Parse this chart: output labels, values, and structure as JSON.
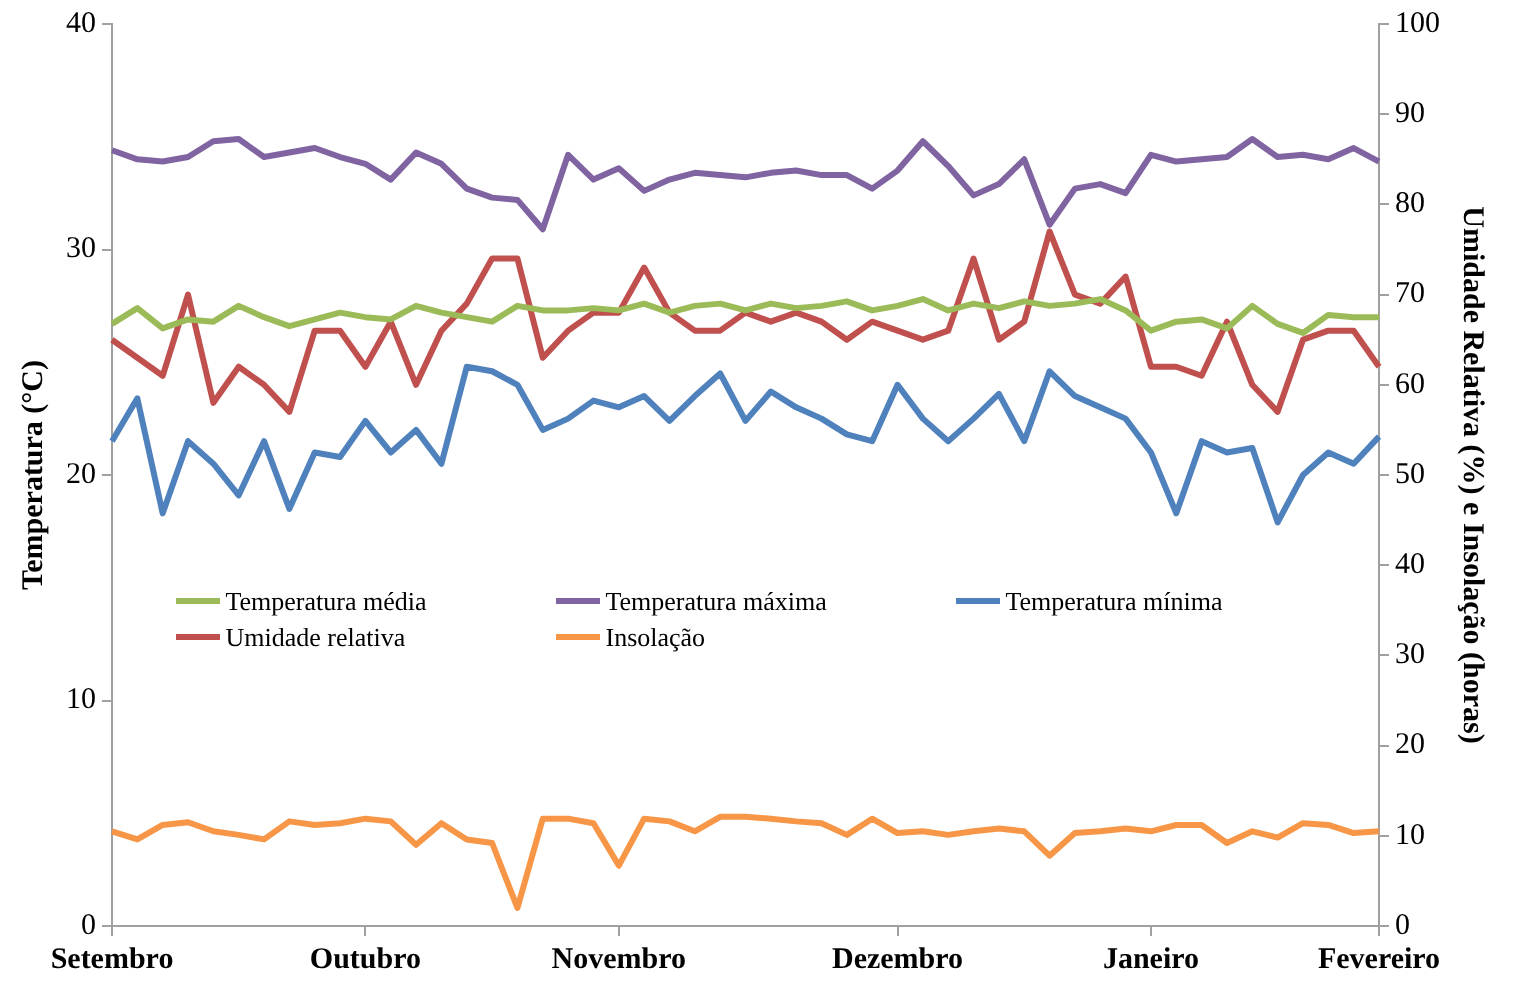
{
  "chart_data": {
    "type": "line",
    "ylabel": "Temperatura (°C)",
    "y2label": "Umidade Relativa (%) e Insolação (horas)",
    "categories": [
      "Setembro",
      null,
      null,
      null,
      null,
      null,
      null,
      null,
      null,
      null,
      "Outubro",
      null,
      null,
      null,
      null,
      null,
      null,
      null,
      null,
      null,
      "Novembro",
      null,
      null,
      null,
      null,
      null,
      null,
      null,
      null,
      null,
      null,
      "Dezembro",
      null,
      null,
      null,
      null,
      null,
      null,
      null,
      null,
      null,
      "Janeiro",
      null,
      null,
      null,
      null,
      null,
      null,
      null,
      null,
      "Fevereiro"
    ],
    "ylim": [
      0,
      40
    ],
    "yticks": [
      0,
      10,
      20,
      30,
      40
    ],
    "y2lim": [
      0,
      100
    ],
    "y2ticks": [
      0,
      10,
      20,
      30,
      40,
      50,
      60,
      70,
      80,
      90,
      100
    ],
    "grid": false,
    "legend": "center",
    "marker": "none",
    "line_style": "solid",
    "series": [
      {
        "name": "Temperatura média",
        "color": "#9bbb59",
        "values": [
          26.7,
          27.4,
          26.5,
          26.9,
          26.8,
          27.5,
          27.0,
          26.6,
          26.9,
          27.2,
          27.0,
          26.9,
          27.5,
          27.2,
          27.0,
          26.8,
          27.5,
          27.3,
          27.3,
          27.4,
          27.3,
          27.6,
          27.2,
          27.5,
          27.6,
          27.3,
          27.6,
          27.4,
          27.5,
          27.7,
          27.3,
          27.5,
          27.8,
          27.3,
          27.6,
          27.4,
          27.7,
          27.5,
          27.6,
          27.8,
          27.3,
          26.4,
          26.8,
          26.9,
          26.5,
          27.5,
          26.7,
          26.3,
          27.1,
          27.0,
          27.0
        ]
      },
      {
        "name": "Temperatura máxima",
        "color": "#8064a2",
        "values": [
          34.4,
          34.0,
          33.9,
          34.1,
          34.8,
          34.9,
          34.1,
          34.3,
          34.5,
          34.1,
          33.8,
          33.1,
          34.3,
          33.8,
          32.7,
          32.3,
          32.2,
          30.9,
          34.2,
          33.1,
          33.6,
          32.6,
          33.1,
          33.4,
          33.3,
          33.2,
          33.4,
          33.5,
          33.3,
          33.3,
          32.7,
          33.5,
          34.8,
          33.7,
          32.4,
          32.9,
          34.0,
          31.1,
          32.7,
          32.9,
          32.5,
          34.2,
          33.9,
          34.0,
          34.1,
          34.9,
          34.1,
          34.2,
          34.0,
          34.5,
          33.9
        ]
      },
      {
        "name": "Temperatura mínima",
        "color": "#4f81bd",
        "values": [
          21.5,
          23.4,
          18.3,
          21.5,
          20.5,
          19.1,
          21.5,
          18.5,
          21.0,
          20.8,
          22.4,
          21.0,
          22.0,
          20.5,
          24.8,
          24.6,
          24.0,
          22.0,
          22.5,
          23.3,
          23.0,
          23.5,
          22.4,
          23.5,
          24.5,
          22.4,
          23.7,
          23.0,
          22.5,
          21.8,
          21.5,
          24.0,
          22.5,
          21.5,
          22.5,
          23.6,
          21.5,
          24.6,
          23.5,
          23.0,
          22.5,
          21.0,
          18.3,
          21.5,
          21.0,
          21.2,
          17.9,
          20.0,
          21.0,
          20.5,
          21.7
        ]
      },
      {
        "name": "Umidade relativa",
        "color": "#c0504d",
        "axis": "y2",
        "values": [
          65,
          63,
          61,
          70,
          58,
          62,
          60,
          57,
          66,
          66,
          62,
          67,
          60,
          66,
          69,
          74,
          74,
          63,
          66,
          68,
          68,
          73,
          68,
          66,
          66,
          68,
          67,
          68,
          67,
          65,
          67,
          66,
          65,
          66,
          74,
          65,
          67,
          77,
          70,
          69,
          72,
          62,
          62,
          61,
          67,
          60,
          57,
          65,
          66,
          66,
          62
        ]
      },
      {
        "name": "Insolação",
        "color": "#f79646",
        "axis": "y2",
        "values": [
          10.5,
          9.6,
          11.2,
          11.5,
          10.5,
          10.1,
          9.6,
          11.6,
          11.2,
          11.4,
          11.9,
          11.6,
          9.0,
          11.4,
          9.6,
          9.2,
          2.0,
          11.9,
          11.9,
          11.4,
          6.7,
          11.9,
          11.6,
          10.5,
          12.1,
          12.1,
          11.9,
          11.6,
          11.4,
          10.1,
          11.9,
          10.3,
          10.5,
          10.1,
          10.5,
          10.8,
          10.5,
          7.8,
          10.3,
          10.5,
          10.8,
          10.5,
          11.2,
          11.2,
          9.2,
          10.5,
          9.8,
          11.4,
          11.2,
          10.3,
          10.5
        ]
      }
    ]
  }
}
